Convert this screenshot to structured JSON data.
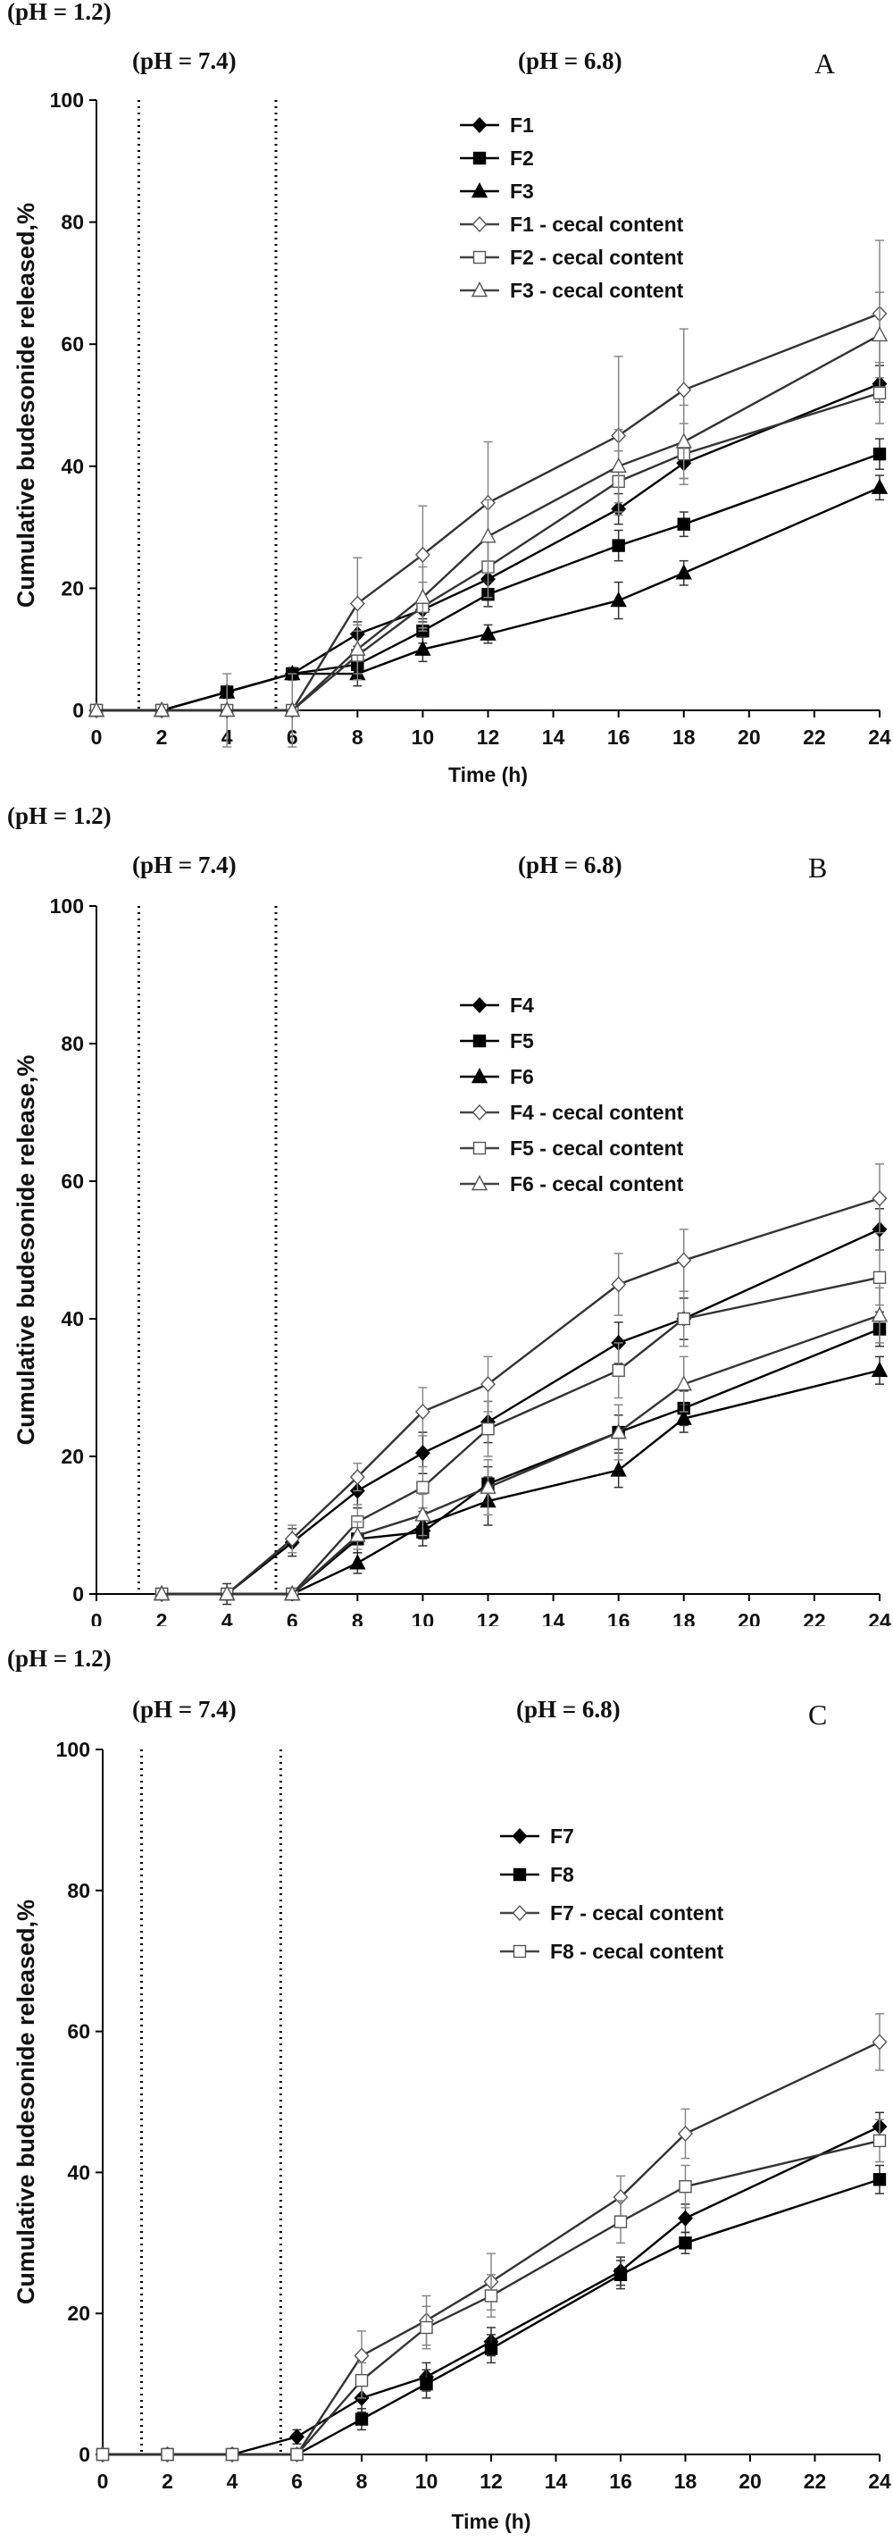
{
  "chart_data": [
    {
      "type": "line",
      "panel_letter": "A",
      "phase_labels": [
        "(pH = 1.2)",
        "(pH = 7.4)",
        "(pH = 6.8)"
      ],
      "xlabel": "Time (h)",
      "ylabel": "Cumulative budesonide released,%",
      "xlim": [
        0,
        24
      ],
      "ylim": [
        0,
        100
      ],
      "x_ticks": [
        0,
        2,
        4,
        6,
        8,
        10,
        12,
        14,
        16,
        18,
        20,
        22,
        24
      ],
      "y_ticks": [
        0,
        20,
        40,
        60,
        80,
        100
      ],
      "phase_boundaries": [
        1.3,
        5.5
      ],
      "grid": false,
      "legend_position": "top-right",
      "series": [
        {
          "name": "F1",
          "marker": "diamond-filled",
          "x": [
            0,
            2,
            4,
            6,
            8,
            10,
            12,
            16,
            18,
            24
          ],
          "y": [
            0,
            0,
            3,
            6,
            12.5,
            16.5,
            21.5,
            33,
            40.5,
            53.5
          ],
          "err": [
            0,
            0,
            1,
            1,
            2,
            2,
            2,
            2.5,
            2.5,
            3
          ]
        },
        {
          "name": "F2",
          "marker": "square-filled",
          "x": [
            0,
            2,
            4,
            6,
            8,
            10,
            12,
            16,
            18,
            24
          ],
          "y": [
            0,
            0,
            3,
            6,
            7.5,
            13,
            19,
            27,
            30.5,
            42
          ],
          "err": [
            0,
            0,
            1,
            1,
            2,
            2,
            2,
            2.5,
            2,
            2.5
          ]
        },
        {
          "name": "F3",
          "marker": "triangle-filled",
          "x": [
            0,
            2,
            4,
            6,
            8,
            10,
            12,
            16,
            18,
            24
          ],
          "y": [
            0,
            0,
            3,
            6,
            6,
            10,
            12.5,
            18,
            22.5,
            36.5
          ],
          "err": [
            0,
            0,
            1,
            1,
            2,
            2,
            1.5,
            3,
            2,
            2
          ]
        },
        {
          "name": "F1 - cecal content",
          "marker": "diamond-open",
          "x": [
            0,
            2,
            4,
            6,
            8,
            10,
            12,
            16,
            18,
            24
          ],
          "y": [
            0,
            0,
            0,
            0,
            17.5,
            25.5,
            34,
            45,
            52.5,
            65
          ],
          "err": [
            0,
            0,
            6,
            6,
            7.5,
            8,
            10,
            13,
            10,
            12
          ]
        },
        {
          "name": "F2 - cecal content",
          "marker": "square-open",
          "x": [
            0,
            2,
            4,
            6,
            8,
            10,
            12,
            16,
            18,
            24
          ],
          "y": [
            0,
            0,
            0,
            0,
            9,
            17,
            23.5,
            37.5,
            42,
            52
          ],
          "err": [
            0,
            0,
            0,
            0,
            4,
            4,
            5,
            5,
            5,
            5
          ]
        },
        {
          "name": "F3 - cecal content",
          "marker": "triangle-open",
          "x": [
            0,
            2,
            4,
            6,
            8,
            10,
            12,
            16,
            18,
            24
          ],
          "y": [
            0,
            0,
            0,
            0,
            10,
            18.5,
            28.5,
            40,
            44,
            61.5
          ],
          "err": [
            0,
            0,
            0,
            0,
            4,
            5,
            6,
            6,
            6,
            7
          ]
        }
      ]
    },
    {
      "type": "line",
      "panel_letter": "B",
      "phase_labels": [
        "(pH = 1.2)",
        "(pH = 7.4)",
        "(pH = 6.8)"
      ],
      "xlabel": "Time (h)",
      "ylabel": "Cumulative budesonide release,%",
      "xlim": [
        0,
        24
      ],
      "ylim": [
        0,
        100
      ],
      "x_ticks": [
        0,
        2,
        4,
        6,
        8,
        10,
        12,
        14,
        16,
        18,
        20,
        22,
        24
      ],
      "y_ticks": [
        0,
        20,
        40,
        60,
        80,
        100
      ],
      "phase_boundaries": [
        1.3,
        5.5
      ],
      "grid": false,
      "legend_position": "top-right",
      "series": [
        {
          "name": "F4",
          "marker": "diamond-filled",
          "x": [
            2,
            4,
            6,
            8,
            10,
            12,
            16,
            18,
            24
          ],
          "y": [
            0,
            0,
            7.5,
            15,
            20.5,
            25,
            36.5,
            40,
            53
          ],
          "err": [
            0,
            1.5,
            2,
            2.5,
            3,
            3,
            3,
            3,
            3
          ]
        },
        {
          "name": "F5",
          "marker": "square-filled",
          "x": [
            2,
            4,
            6,
            8,
            10,
            12,
            16,
            18,
            24
          ],
          "y": [
            0,
            0,
            0,
            8,
            9,
            16,
            23.5,
            27,
            38.5
          ],
          "err": [
            0,
            0,
            0,
            2,
            2,
            2.5,
            2.5,
            2.5,
            2.5
          ]
        },
        {
          "name": "F6",
          "marker": "triangle-filled",
          "x": [
            2,
            4,
            6,
            8,
            10,
            12,
            16,
            18,
            24
          ],
          "y": [
            0,
            0,
            0,
            4.5,
            10,
            13.5,
            18,
            25.5,
            32.5
          ],
          "err": [
            0,
            0,
            0,
            1.5,
            2,
            3.5,
            2.5,
            2,
            2
          ]
        },
        {
          "name": "F4 - cecal content",
          "marker": "diamond-open",
          "x": [
            2,
            4,
            6,
            8,
            10,
            12,
            16,
            18,
            24
          ],
          "y": [
            0,
            0,
            8,
            17,
            26.5,
            30.5,
            45,
            48.5,
            57.5
          ],
          "err": [
            0,
            0,
            2,
            2,
            3.5,
            4,
            4.5,
            4.5,
            5
          ]
        },
        {
          "name": "F5 - cecal content",
          "marker": "square-open",
          "x": [
            2,
            4,
            6,
            8,
            10,
            12,
            16,
            18,
            24
          ],
          "y": [
            0,
            0,
            0,
            10.5,
            15.5,
            24,
            32.5,
            40,
            46
          ],
          "err": [
            0,
            0,
            0,
            2.5,
            3,
            4,
            4,
            4,
            4
          ]
        },
        {
          "name": "F6 - cecal content",
          "marker": "triangle-open",
          "x": [
            2,
            4,
            6,
            8,
            10,
            12,
            16,
            18,
            24
          ],
          "y": [
            0,
            0,
            0,
            8.5,
            11.5,
            15.5,
            23.5,
            30.5,
            40.5
          ],
          "err": [
            0,
            0,
            0,
            2,
            3,
            4,
            4,
            4,
            4
          ]
        }
      ]
    },
    {
      "type": "line",
      "panel_letter": "C",
      "phase_labels": [
        "(pH = 1.2)",
        "(pH = 7.4)",
        "(pH = 6.8)"
      ],
      "xlabel": "Time (h)",
      "ylabel": "Cumulative budesonide released,%",
      "xlim": [
        0,
        24
      ],
      "ylim": [
        0,
        100
      ],
      "x_ticks": [
        0,
        2,
        4,
        6,
        8,
        10,
        12,
        14,
        16,
        18,
        20,
        22,
        24
      ],
      "y_ticks": [
        0,
        20,
        40,
        60,
        80,
        100
      ],
      "phase_boundaries": [
        1.2,
        5.5
      ],
      "grid": false,
      "legend_position": "top-right",
      "series": [
        {
          "name": "F7",
          "marker": "diamond-filled",
          "x": [
            0,
            2,
            4,
            6,
            8,
            10,
            12,
            16,
            18,
            24
          ],
          "y": [
            0,
            0,
            0,
            2.5,
            8,
            11,
            16,
            26,
            33.5,
            46.5
          ],
          "err": [
            0,
            0,
            0,
            1,
            2,
            2,
            2,
            2,
            2,
            2
          ]
        },
        {
          "name": "F8",
          "marker": "square-filled",
          "x": [
            0,
            2,
            4,
            6,
            8,
            10,
            12,
            16,
            18,
            24
          ],
          "y": [
            0,
            0,
            0,
            0,
            5,
            10,
            15,
            25.5,
            30,
            39
          ],
          "err": [
            0,
            0,
            0,
            0,
            1.5,
            2,
            2,
            2,
            1.5,
            2
          ]
        },
        {
          "name": "F7 - cecal content",
          "marker": "diamond-open",
          "x": [
            0,
            2,
            4,
            6,
            8,
            10,
            12,
            16,
            18,
            24
          ],
          "y": [
            0,
            0,
            0,
            0,
            14,
            19,
            24.5,
            36.5,
            45.5,
            58.5
          ],
          "err": [
            0,
            0,
            0,
            0,
            3.5,
            3.5,
            4,
            3,
            3.5,
            4
          ]
        },
        {
          "name": "F8 - cecal content",
          "marker": "square-open",
          "x": [
            0,
            2,
            4,
            6,
            8,
            10,
            12,
            16,
            18,
            24
          ],
          "y": [
            0,
            0,
            0,
            0,
            10.5,
            18,
            22.5,
            33,
            38,
            44.5
          ],
          "err": [
            0,
            0,
            0,
            0,
            2.5,
            3,
            3,
            3,
            3,
            3
          ]
        }
      ]
    }
  ]
}
